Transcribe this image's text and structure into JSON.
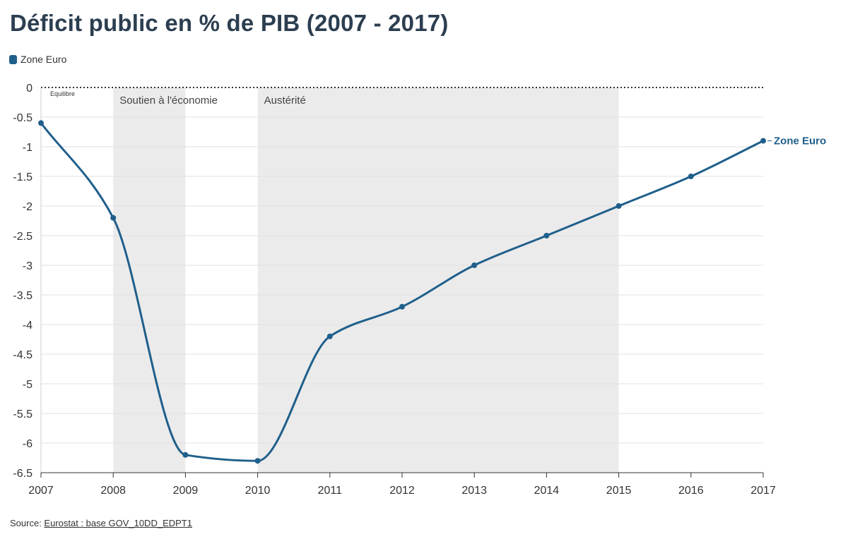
{
  "chart_data": {
    "type": "line",
    "title": "Déficit public en % de PIB (2007 - 2017)",
    "xlabel": "",
    "ylabel": "",
    "x": [
      2007,
      2008,
      2009,
      2010,
      2011,
      2012,
      2013,
      2014,
      2015,
      2016,
      2017
    ],
    "series": [
      {
        "name": "Zone Euro",
        "values": [
          -0.6,
          -2.2,
          -6.2,
          -6.3,
          -4.2,
          -3.7,
          -3.0,
          -2.5,
          -2.0,
          -1.5,
          -0.9
        ]
      }
    ],
    "ylim": [
      -6.5,
      0
    ],
    "yticks": [
      0,
      -0.5,
      -1,
      -1.5,
      -2,
      -2.5,
      -3,
      -3.5,
      -4,
      -4.5,
      -5,
      -5.5,
      -6,
      -6.5
    ],
    "ytick_labels": [
      "0",
      "-0.5",
      "-1",
      "-1.5",
      "-2",
      "-2.5",
      "-3",
      "-3.5",
      "-4",
      "-4.5",
      "-5",
      "-5.5",
      "-6",
      "-6.5"
    ],
    "xtick_labels": [
      "2007",
      "2008",
      "2009",
      "2010",
      "2011",
      "2012",
      "2013",
      "2014",
      "2015",
      "2016",
      "2017"
    ],
    "grid": true,
    "legend": "top-left",
    "series_color": "#1f5f8b",
    "shaded_periods": [
      {
        "label": "Soutien à l'économie",
        "start": 2008,
        "end": 2009
      },
      {
        "label": "Austérité",
        "start": 2010,
        "end": 2015
      }
    ],
    "reference_line": {
      "value": 0,
      "label": "Equilibre"
    },
    "end_label": "Zone Euro"
  },
  "legend": {
    "label": "Zone Euro",
    "color": "#1f5f8b"
  },
  "source": {
    "prefix": "Source: ",
    "link_text": "Eurostat : base GOV_10DD_EDPT1"
  }
}
